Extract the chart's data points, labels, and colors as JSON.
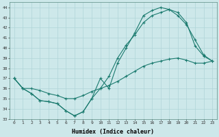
{
  "xlabel": "Humidex (Indice chaleur)",
  "xlim": [
    -0.5,
    23.5
  ],
  "ylim": [
    33,
    44.5
  ],
  "yticks": [
    33,
    34,
    35,
    36,
    37,
    38,
    39,
    40,
    41,
    42,
    43,
    44
  ],
  "xticks": [
    0,
    1,
    2,
    3,
    4,
    5,
    6,
    7,
    8,
    9,
    10,
    11,
    12,
    13,
    14,
    15,
    16,
    17,
    18,
    19,
    20,
    21,
    22,
    23
  ],
  "bg_color": "#cde8ea",
  "grid_color": "#b0d4d8",
  "line_color": "#1a7a6e",
  "line1_x": [
    0,
    1,
    2,
    3,
    4,
    5,
    6,
    7,
    8,
    9,
    10,
    11,
    12,
    13,
    14,
    15,
    16,
    17,
    18,
    19,
    20,
    21,
    22,
    23
  ],
  "line1_y": [
    37.0,
    36.0,
    35.5,
    34.8,
    34.7,
    34.5,
    33.8,
    33.3,
    33.7,
    35.0,
    37.0,
    36.0,
    38.5,
    40.0,
    41.5,
    43.2,
    43.7,
    44.0,
    43.8,
    43.2,
    42.3,
    40.8,
    39.3,
    38.7
  ],
  "line2_x": [
    0,
    1,
    2,
    3,
    4,
    5,
    6,
    7,
    8,
    9,
    10,
    11,
    12,
    13,
    14,
    15,
    16,
    17,
    18,
    19,
    20,
    21,
    22,
    23
  ],
  "line2_y": [
    37.0,
    36.0,
    35.5,
    34.8,
    34.7,
    34.5,
    33.8,
    33.3,
    33.7,
    35.0,
    36.0,
    37.2,
    39.0,
    40.3,
    41.3,
    42.5,
    43.2,
    43.5,
    43.8,
    43.5,
    42.5,
    40.2,
    39.2,
    38.7
  ],
  "line3_x": [
    0,
    1,
    2,
    3,
    4,
    5,
    6,
    7,
    8,
    9,
    10,
    11,
    12,
    13,
    14,
    15,
    16,
    17,
    18,
    19,
    20,
    21,
    22,
    23
  ],
  "line3_y": [
    37.0,
    36.0,
    36.0,
    35.8,
    35.5,
    35.3,
    35.0,
    35.0,
    35.3,
    35.7,
    36.0,
    36.3,
    36.7,
    37.2,
    37.7,
    38.2,
    38.5,
    38.7,
    38.9,
    39.0,
    38.8,
    38.5,
    38.5,
    38.7
  ]
}
